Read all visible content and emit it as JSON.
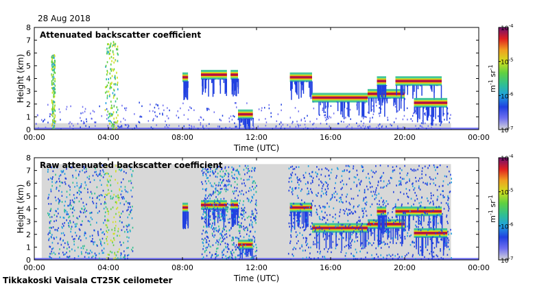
{
  "date_label": "28 Aug 2018",
  "footer_label": "Tikkakoski Vaisala CT25K ceilometer",
  "colorbar": {
    "ticks": [
      {
        "base": "10",
        "exp": "-4"
      },
      {
        "base": "10",
        "exp": "-5"
      },
      {
        "base": "10",
        "exp": "-6"
      },
      {
        "base": "10",
        "exp": "-7"
      }
    ],
    "unit": {
      "m": "m",
      "m_exp": "-1",
      "sr": "sr",
      "sr_exp": "-1"
    },
    "range_log10": [
      -7,
      -4
    ],
    "colors_low_to_high": [
      "#d8d8d8",
      "#7070f0",
      "#2040e0",
      "#20a0e0",
      "#30c090",
      "#60d040",
      "#d0e020",
      "#f0a020",
      "#e02020",
      "#701070"
    ]
  },
  "chart_data": [
    {
      "type": "heatmap",
      "title": "Attenuated backscatter coefficient",
      "xlabel": "Time (UTC)",
      "ylabel": "Height (km)",
      "xlim": [
        0,
        24
      ],
      "ylim": [
        0,
        8
      ],
      "x_ticks": [
        "00:00",
        "04:00",
        "08:00",
        "12:00",
        "16:00",
        "20:00",
        "00:00"
      ],
      "y_ticks": [
        "0",
        "1",
        "2",
        "3",
        "4",
        "5",
        "6",
        "7",
        "8"
      ],
      "features": [
        {
          "kind": "cloud layer",
          "t_start": 8.0,
          "t_end": 8.3,
          "height_km": 4.1
        },
        {
          "kind": "cloud layer",
          "t_start": 9.0,
          "t_end": 10.4,
          "height_km": 4.3
        },
        {
          "kind": "cloud layer",
          "t_start": 10.6,
          "t_end": 11.0,
          "height_km": 4.3
        },
        {
          "kind": "cloud layer",
          "t_start": 13.8,
          "t_end": 15.0,
          "height_km": 4.1
        },
        {
          "kind": "cloud layer",
          "t_start": 15.0,
          "t_end": 18.0,
          "height_km": 2.5
        },
        {
          "kind": "cloud layer",
          "t_start": 18.0,
          "t_end": 20.0,
          "height_km": 2.8
        },
        {
          "kind": "cloud layer",
          "t_start": 18.5,
          "t_end": 19.0,
          "height_km": 3.8
        },
        {
          "kind": "cloud layer",
          "t_start": 19.5,
          "t_end": 22.0,
          "height_km": 3.8
        },
        {
          "kind": "cloud layer",
          "t_start": 20.5,
          "t_end": 22.3,
          "height_km": 2.1
        },
        {
          "kind": "low cloud",
          "t_start": 11.0,
          "t_end": 11.8,
          "height_km": 1.2
        },
        {
          "kind": "precipitation",
          "t_start": 0.9,
          "t_end": 1.1,
          "top_km": 6.0
        },
        {
          "kind": "precipitation",
          "t_start": 3.8,
          "t_end": 4.5,
          "top_km": 7.0
        },
        {
          "kind": "boundary layer",
          "t_start": 0.0,
          "t_end": 24.0,
          "top_km": 0.6
        }
      ]
    },
    {
      "type": "heatmap",
      "title": "Raw attenuated backscatter coefficient",
      "xlabel": "Time (UTC)",
      "ylabel": "Height (km)",
      "xlim": [
        0,
        24
      ],
      "ylim": [
        0,
        8
      ],
      "x_ticks": [
        "00:00",
        "04:00",
        "08:00",
        "12:00",
        "16:00",
        "20:00",
        "00:00"
      ],
      "y_ticks": [
        "0",
        "1",
        "2",
        "3",
        "4",
        "5",
        "6",
        "7",
        "8"
      ],
      "features": [
        {
          "kind": "cloud layer",
          "t_start": 8.0,
          "t_end": 8.3,
          "height_km": 4.1
        },
        {
          "kind": "cloud layer",
          "t_start": 9.0,
          "t_end": 10.4,
          "height_km": 4.3
        },
        {
          "kind": "cloud layer",
          "t_start": 10.6,
          "t_end": 11.0,
          "height_km": 4.3
        },
        {
          "kind": "cloud layer",
          "t_start": 13.8,
          "t_end": 15.0,
          "height_km": 4.1
        },
        {
          "kind": "cloud layer",
          "t_start": 15.0,
          "t_end": 18.0,
          "height_km": 2.5
        },
        {
          "kind": "cloud layer",
          "t_start": 18.0,
          "t_end": 20.0,
          "height_km": 2.8
        },
        {
          "kind": "cloud layer",
          "t_start": 18.5,
          "t_end": 19.0,
          "height_km": 3.8
        },
        {
          "kind": "cloud layer",
          "t_start": 19.5,
          "t_end": 22.0,
          "height_km": 3.8
        },
        {
          "kind": "cloud layer",
          "t_start": 20.5,
          "t_end": 22.3,
          "height_km": 2.1
        },
        {
          "kind": "low cloud",
          "t_start": 11.0,
          "t_end": 11.8,
          "height_km": 1.2
        },
        {
          "kind": "noise column",
          "t_start": 0.7,
          "t_end": 5.3,
          "top_km": 7.5
        },
        {
          "kind": "noise column",
          "t_start": 9.0,
          "t_end": 12.0,
          "top_km": 7.5
        },
        {
          "kind": "noise region",
          "t_start": 13.7,
          "t_end": 22.5,
          "top_km": 7.5
        }
      ]
    }
  ]
}
